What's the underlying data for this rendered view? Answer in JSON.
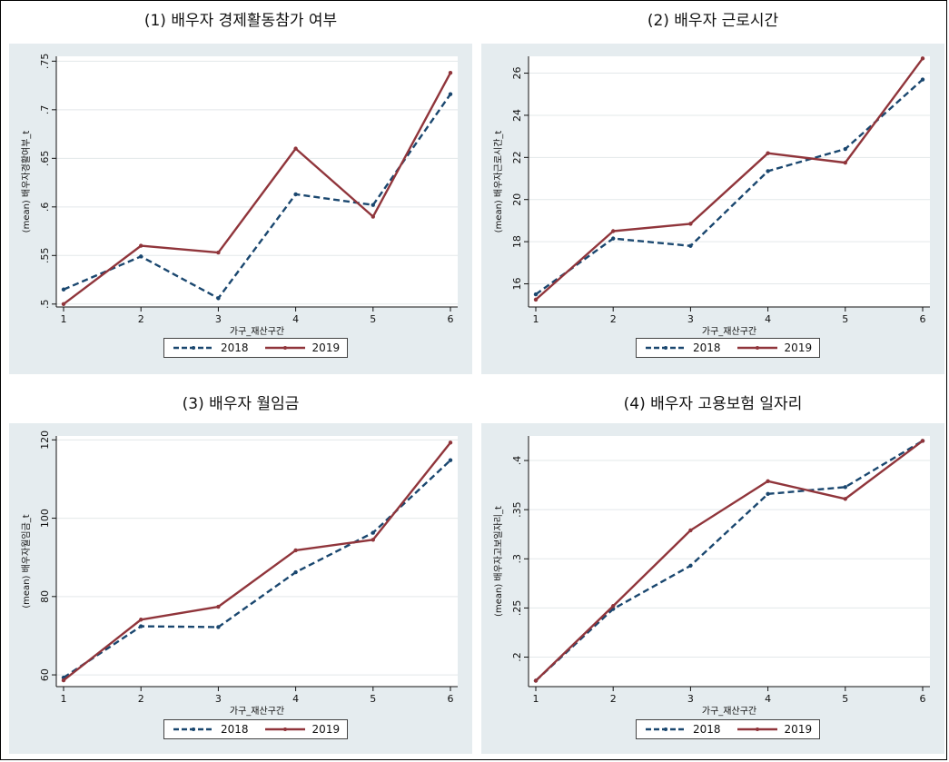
{
  "chart_data": [
    {
      "type": "line",
      "title": "(1) 배우자 경제활동참가 여부",
      "xlabel": "가구_재산구간",
      "ylabel": "(mean) 배우자경활여부_t",
      "x": [
        1,
        2,
        3,
        4,
        5,
        6
      ],
      "ylim": [
        0.497,
        0.755
      ],
      "yticks": [
        0.5,
        0.55,
        0.6,
        0.65,
        0.7,
        0.75
      ],
      "ytick_labels": [
        ".5",
        ".55",
        ".6",
        ".65",
        ".7",
        ".75"
      ],
      "series": [
        {
          "name": "2018",
          "values": [
            0.515,
            0.549,
            0.506,
            0.613,
            0.602,
            0.716
          ],
          "color": "#1a476f",
          "style": "dashed"
        },
        {
          "name": "2019",
          "values": [
            0.5,
            0.56,
            0.553,
            0.66,
            0.59,
            0.738
          ],
          "color": "#90353b",
          "style": "solid"
        }
      ],
      "grid": true,
      "legend": "bottom"
    },
    {
      "type": "line",
      "title": "(2) 배우자 근로시간",
      "xlabel": "가구_재산구간",
      "ylabel": "(mean) 배우자근로시간_t",
      "x": [
        1,
        2,
        3,
        4,
        5,
        6
      ],
      "ylim": [
        14.9,
        26.8
      ],
      "yticks": [
        16,
        18,
        20,
        22,
        24,
        26
      ],
      "ytick_labels": [
        "16",
        "18",
        "20",
        "22",
        "24",
        "26"
      ],
      "series": [
        {
          "name": "2018",
          "values": [
            15.5,
            18.15,
            17.8,
            21.35,
            22.4,
            25.7
          ],
          "color": "#1a476f",
          "style": "dashed"
        },
        {
          "name": "2019",
          "values": [
            15.25,
            18.5,
            18.85,
            22.2,
            21.75,
            26.7
          ],
          "color": "#90353b",
          "style": "solid"
        }
      ],
      "grid": true,
      "legend": "bottom"
    },
    {
      "type": "line",
      "title": "(3) 배우자 월임금",
      "xlabel": "가구_재산구간",
      "ylabel": "(mean) 배우자월임금_t",
      "x": [
        1,
        2,
        3,
        4,
        5,
        6
      ],
      "ylim": [
        57,
        121
      ],
      "yticks": [
        60,
        80,
        100,
        120
      ],
      "ytick_labels": [
        "60",
        "80",
        "100",
        "120"
      ],
      "series": [
        {
          "name": "2018",
          "values": [
            59.3,
            72.4,
            72.2,
            86.2,
            96.3,
            114.8
          ],
          "color": "#1a476f",
          "style": "dashed"
        },
        {
          "name": "2019",
          "values": [
            58.6,
            74.1,
            77.4,
            91.8,
            94.5,
            119.3
          ],
          "color": "#90353b",
          "style": "solid"
        }
      ],
      "grid": true,
      "legend": "bottom"
    },
    {
      "type": "line",
      "title": "(4) 배우자 고용보험 일자리",
      "xlabel": "가구_재산구간",
      "ylabel": "(mean) 배우자고보일자리_t",
      "x": [
        1,
        2,
        3,
        4,
        5,
        6
      ],
      "ylim": [
        0.17,
        0.425
      ],
      "yticks": [
        0.2,
        0.25,
        0.3,
        0.35,
        0.4
      ],
      "ytick_labels": [
        ".2",
        ".25",
        ".3",
        ".35",
        ".4"
      ],
      "series": [
        {
          "name": "2018",
          "values": [
            0.176,
            0.249,
            0.293,
            0.366,
            0.373,
            0.42
          ],
          "color": "#1a476f",
          "style": "dashed"
        },
        {
          "name": "2019",
          "values": [
            0.176,
            0.252,
            0.329,
            0.379,
            0.361,
            0.42
          ],
          "color": "#90353b",
          "style": "solid"
        }
      ],
      "grid": true,
      "legend": "bottom"
    }
  ]
}
